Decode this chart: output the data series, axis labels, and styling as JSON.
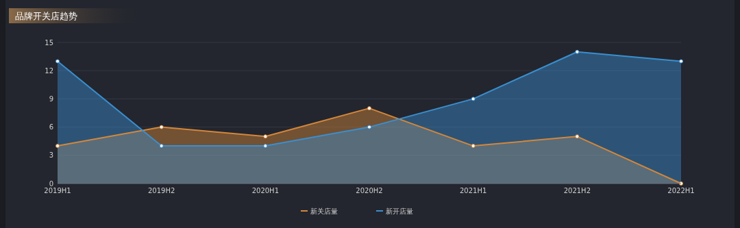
{
  "chart_data": {
    "type": "area",
    "title": "品牌开关店趋势",
    "categories": [
      "2019H1",
      "2019H2",
      "2020H1",
      "2020H2",
      "2021H1",
      "2021H2",
      "2022H1"
    ],
    "series": [
      {
        "name": "新关店量",
        "color": "#d4873a",
        "values": [
          4,
          6,
          5,
          8,
          4,
          5,
          0
        ]
      },
      {
        "name": "新开店量",
        "color": "#3a8fd0",
        "values": [
          13,
          4,
          4,
          6,
          9,
          14,
          13
        ]
      }
    ],
    "ylim": [
      0,
      15
    ],
    "yticks": [
      0,
      3,
      6,
      9,
      12,
      15
    ],
    "grid": "y",
    "legend": "bottom",
    "marker": "circle"
  }
}
